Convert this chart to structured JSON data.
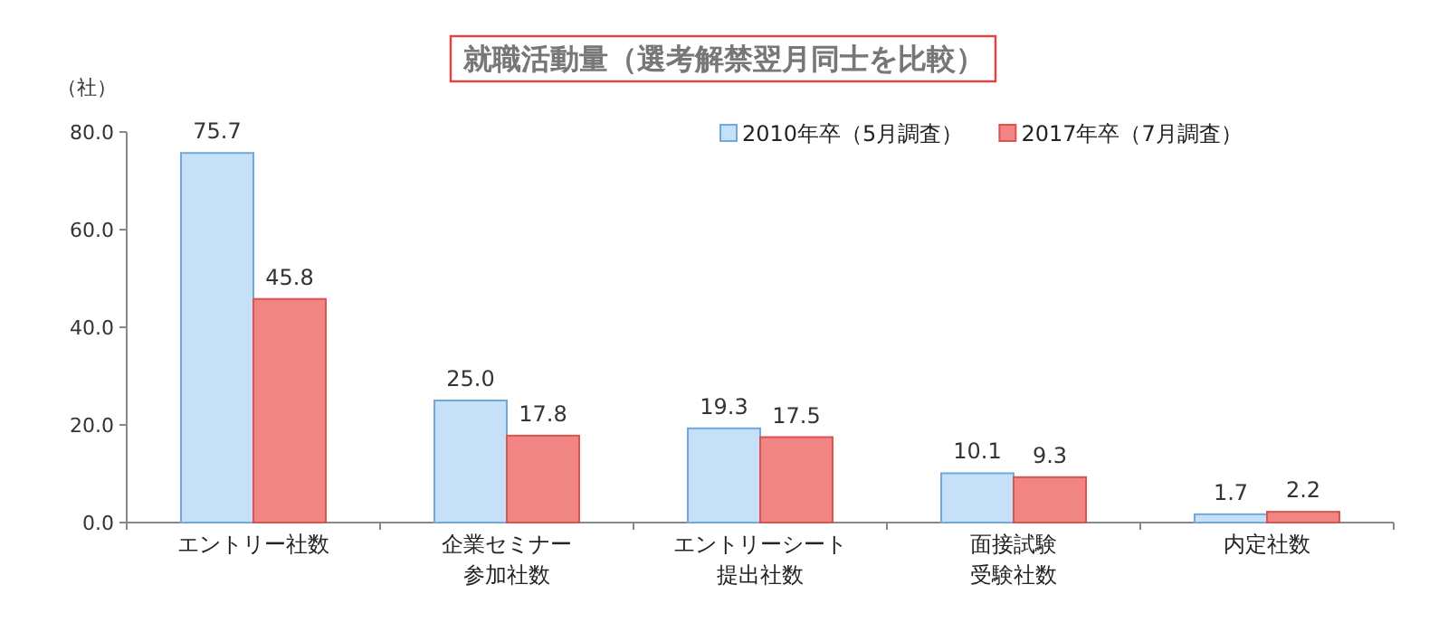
{
  "chart_data": {
    "type": "bar",
    "title": "就職活動量（選考解禁翌月同士を比較）",
    "ylabel": "（社）",
    "categories": [
      "エントリー社数",
      "企業セミナー参加社数",
      "エントリーシート提出社数",
      "面接試験受験社数",
      "内定社数"
    ],
    "series": [
      {
        "name": "2010年卒（5月調査）",
        "color": "#c6e0f8",
        "values": [
          75.7,
          25.0,
          19.3,
          10.1,
          1.7
        ],
        "value_labels": [
          "75.7",
          "25.0",
          "19.3",
          "10.1",
          "1.7"
        ]
      },
      {
        "name": "2017年卒（7月調査）",
        "color": "#f08584",
        "values": [
          45.8,
          17.8,
          17.5,
          9.3,
          2.2
        ],
        "value_labels": [
          "45.8",
          "17.8",
          "17.5",
          "9.3",
          "2.2"
        ]
      }
    ],
    "ylim": [
      0,
      80
    ],
    "yticks": [
      {
        "value": 0,
        "label": "0.0"
      },
      {
        "value": 20,
        "label": "20.0"
      },
      {
        "value": 40,
        "label": "40.0"
      },
      {
        "value": 60,
        "label": "60.0"
      },
      {
        "value": 80,
        "label": "80.0"
      }
    ],
    "legend": "top right"
  }
}
